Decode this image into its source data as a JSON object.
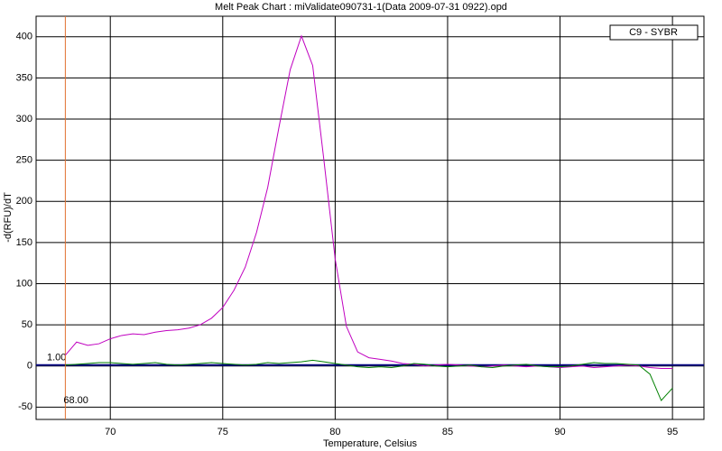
{
  "chart_data": {
    "type": "line",
    "title": "Melt Peak Chart : miValidate090731-1(Data 2009-07-31 0922).opd",
    "x_label": "Temperature, Celsius",
    "y_label": "-d(RFU)/dT",
    "legend": "C9 - SYBR",
    "x": [
      68,
      68.5,
      69,
      69.5,
      70,
      70.5,
      71,
      71.5,
      72,
      72.5,
      73,
      73.5,
      74,
      74.5,
      75,
      75.5,
      76,
      76.5,
      77,
      77.5,
      78,
      78.5,
      79,
      79.5,
      80,
      80.5,
      81,
      81.5,
      82,
      82.5,
      83,
      83.5,
      84,
      84.5,
      85,
      85.5,
      86,
      86.5,
      87,
      87.5,
      88,
      88.5,
      89,
      89.5,
      90,
      90.5,
      91,
      91.5,
      92,
      92.5,
      93,
      93.5,
      94,
      94.5,
      95
    ],
    "series": [
      {
        "color": "#c000c0",
        "values": [
          13,
          29,
          25,
          27,
          33,
          37,
          39,
          38,
          41,
          43,
          44,
          46,
          50,
          58,
          71,
          92,
          120,
          162,
          217,
          290,
          360,
          401,
          365,
          250,
          130,
          48,
          17,
          10,
          8,
          6,
          3,
          2,
          0,
          1,
          2,
          1,
          0,
          -1,
          0,
          1,
          0,
          -1,
          0,
          -1,
          -2,
          -1,
          0,
          -2,
          -1,
          0,
          1,
          0,
          -2,
          -3,
          -3
        ]
      },
      {
        "color": "#008000",
        "values": [
          1,
          2,
          3,
          4,
          4,
          3,
          2,
          3,
          4,
          2,
          1,
          2,
          3,
          4,
          3,
          2,
          1,
          2,
          4,
          3,
          4,
          5,
          7,
          5,
          3,
          1,
          -1,
          -2,
          -1,
          -2,
          0,
          3,
          2,
          0,
          -1,
          0,
          1,
          -1,
          -2,
          0,
          1,
          2,
          0,
          -1,
          -1,
          0,
          2,
          4,
          3,
          3,
          2,
          1,
          -10,
          -42,
          -27
        ]
      }
    ],
    "threshold": {
      "value": 1,
      "label": "1.00",
      "color": "#000080"
    },
    "marker": {
      "value": 68,
      "label": "68.00",
      "color": "#e07030"
    },
    "xlim": [
      66.7,
      96.4
    ],
    "ylim": [
      -65,
      425
    ],
    "xticks": [
      70,
      75,
      80,
      85,
      90,
      95
    ],
    "yticks": [
      -50,
      0,
      50,
      100,
      150,
      200,
      250,
      300,
      350,
      400
    ],
    "grid": true
  }
}
